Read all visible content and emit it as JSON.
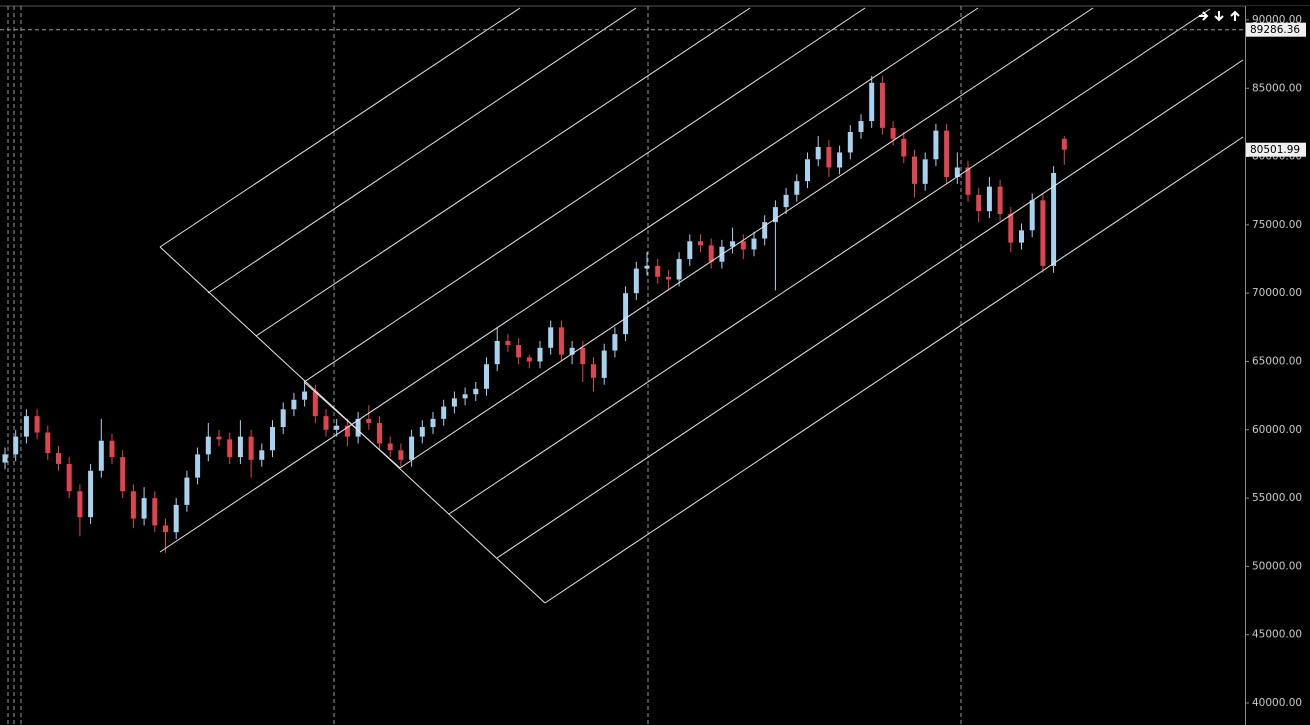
{
  "chart_data": {
    "type": "candlestick",
    "ylim": [
      38390,
      91460
    ],
    "yticks": [
      {
        "value": 40000,
        "label": "40000.00"
      },
      {
        "value": 45000,
        "label": "45000.00"
      },
      {
        "value": 50000,
        "label": "50000.00"
      },
      {
        "value": 55000,
        "label": "55000.00"
      },
      {
        "value": 60000,
        "label": "60000.00"
      },
      {
        "value": 65000,
        "label": "65000.00"
      },
      {
        "value": 70000,
        "label": "70000.00"
      },
      {
        "value": 75000,
        "label": "75000.00"
      },
      {
        "value": 80000,
        "label": "80000.00"
      },
      {
        "value": 85000,
        "label": "85000.00"
      },
      {
        "value": 90000,
        "label": "90000.00"
      }
    ],
    "crosshair_price": 89286.36,
    "up_color": "#a9d2ee",
    "down_color": "#e0444f",
    "open": [
      57600,
      58200,
      59500,
      61000,
      59800,
      58300,
      57500,
      55500,
      53600,
      57000,
      59200,
      58000,
      55500,
      53500,
      55000,
      53000,
      52500,
      54500,
      56500,
      58200,
      59500,
      59300,
      58000,
      59500,
      57800,
      58500,
      60200,
      61500,
      62200,
      62800,
      61000,
      60000,
      60300,
      59500,
      60800,
      60500,
      59000,
      58500,
      57800,
      59500,
      60200,
      60800,
      61700,
      62300,
      62600,
      63000,
      64800,
      66500,
      66200,
      65300,
      65000,
      66000,
      67500,
      65500,
      66000,
      64800,
      63800,
      65800,
      67000,
      70000,
      71800,
      72000,
      71200,
      71000,
      72500,
      73800,
      73500,
      72300,
      73400,
      73800,
      73200,
      74000,
      75200,
      76300,
      77200,
      78200,
      79800,
      80700,
      79200,
      80300,
      81800,
      82600,
      85400,
      82100,
      81300,
      80000,
      78000,
      79800,
      81900,
      78500,
      79200,
      77200,
      76000,
      77800,
      75800,
      73700,
      74600,
      76800,
      72000,
      81300
    ],
    "high": [
      58700,
      60000,
      61500,
      61500,
      60300,
      58800,
      58000,
      56000,
      57500,
      60800,
      59700,
      58500,
      56000,
      55800,
      55500,
      53500,
      55000,
      57000,
      58700,
      60500,
      60000,
      59800,
      60700,
      60000,
      59000,
      60700,
      62000,
      62700,
      63500,
      63300,
      61500,
      60800,
      60800,
      61300,
      61800,
      61000,
      59500,
      59000,
      60000,
      60700,
      61300,
      62200,
      62800,
      63100,
      63500,
      65300,
      67500,
      67000,
      66700,
      65500,
      66500,
      68000,
      68000,
      66500,
      66500,
      65300,
      66300,
      67500,
      70500,
      72300,
      73000,
      72500,
      71700,
      73000,
      74300,
      74300,
      74000,
      73900,
      74800,
      74300,
      74500,
      75700,
      76800,
      77700,
      78700,
      80300,
      81500,
      81200,
      80800,
      82300,
      83100,
      85900,
      85900,
      82600,
      81800,
      80500,
      80300,
      82400,
      82400,
      80300,
      79700,
      77700,
      78500,
      78300,
      76300,
      75100,
      77300,
      77300,
      79300,
      81500
    ],
    "low": [
      57100,
      57700,
      59000,
      59300,
      57800,
      57000,
      55000,
      52200,
      53100,
      56500,
      57500,
      55000,
      52800,
      53000,
      52500,
      51000,
      52000,
      54000,
      56000,
      57700,
      58800,
      57500,
      57500,
      56500,
      57300,
      58000,
      59700,
      61000,
      61700,
      60500,
      59500,
      59500,
      58800,
      59000,
      60000,
      58500,
      58000,
      57300,
      57300,
      59000,
      59700,
      60300,
      61200,
      61800,
      62100,
      62500,
      64300,
      65700,
      64800,
      64500,
      64500,
      65500,
      65000,
      64800,
      63500,
      62800,
      63300,
      65300,
      66500,
      69500,
      71300,
      70700,
      70200,
      70500,
      72000,
      73000,
      71800,
      71800,
      72900,
      72500,
      72700,
      73500,
      70200,
      75800,
      76700,
      77700,
      79300,
      78500,
      78700,
      79800,
      81300,
      82100,
      81600,
      80800,
      79500,
      77000,
      77500,
      79300,
      78000,
      78000,
      76700,
      75200,
      75500,
      75300,
      73000,
      73200,
      74100,
      71500,
      71500,
      79400
    ],
    "close": [
      58200,
      59500,
      61000,
      59800,
      58300,
      57500,
      55500,
      53600,
      57000,
      59200,
      58000,
      55500,
      53500,
      55000,
      53000,
      52500,
      54500,
      56500,
      58200,
      59500,
      59300,
      58000,
      59500,
      57800,
      58500,
      60200,
      61500,
      62200,
      62800,
      61000,
      60000,
      60300,
      59500,
      60800,
      60500,
      59000,
      58500,
      57800,
      59500,
      60200,
      60800,
      61700,
      62300,
      62600,
      63000,
      64800,
      66500,
      66200,
      65300,
      65000,
      66000,
      67500,
      65500,
      66000,
      64800,
      63800,
      65800,
      67000,
      70000,
      71800,
      72000,
      71200,
      71000,
      72500,
      73800,
      73500,
      72300,
      73400,
      73800,
      73200,
      74000,
      75200,
      76300,
      77200,
      78200,
      79800,
      80700,
      79200,
      80300,
      81800,
      82600,
      85400,
      82100,
      81300,
      80000,
      78000,
      79800,
      81900,
      78500,
      79200,
      77200,
      76000,
      77800,
      75800,
      73700,
      74600,
      76800,
      72000,
      78800,
      80501.99
    ]
  }
}
